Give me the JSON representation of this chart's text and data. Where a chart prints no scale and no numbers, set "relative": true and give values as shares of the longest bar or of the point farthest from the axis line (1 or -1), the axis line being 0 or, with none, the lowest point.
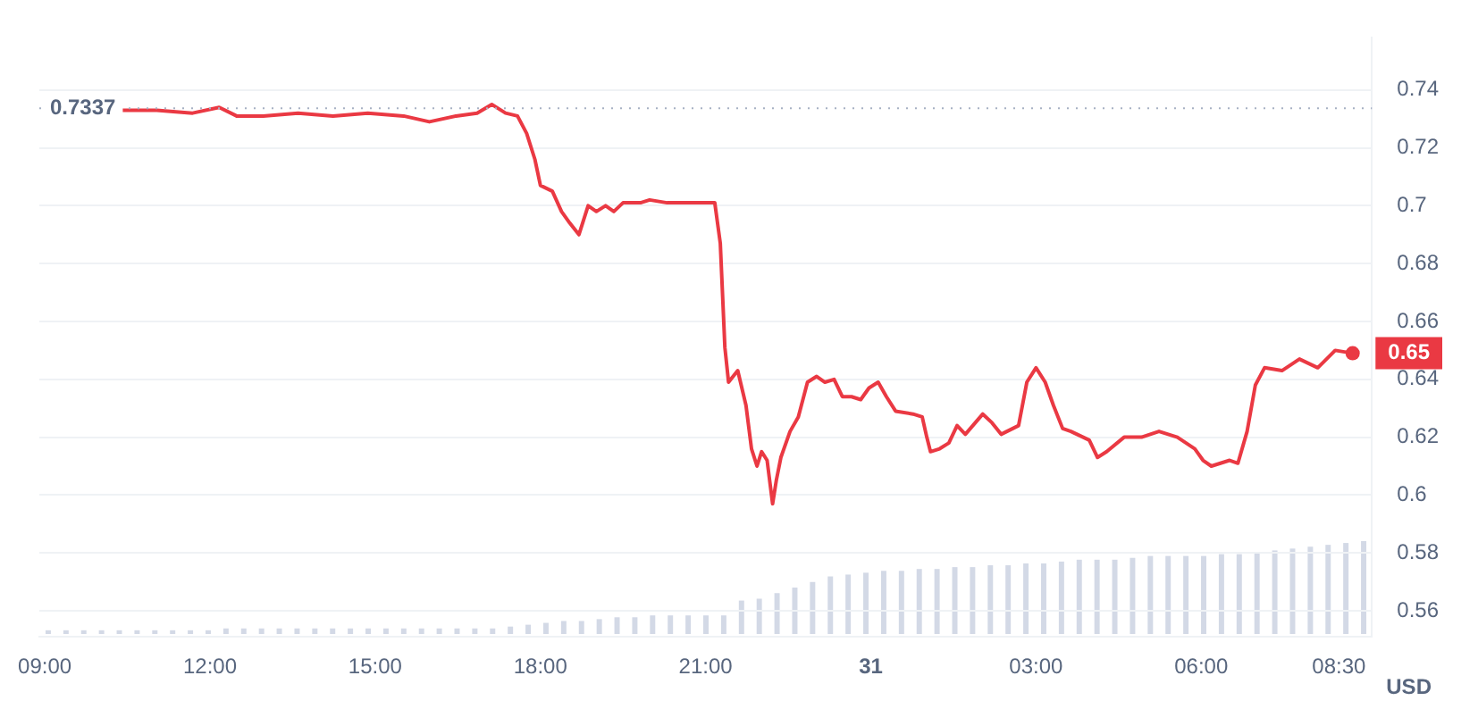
{
  "chart_data": [
    {
      "type": "line",
      "ylabel": "USD",
      "grid": "y",
      "legend": false,
      "marker": "none",
      "line_style": "solid",
      "tick_labels": true,
      "xlim": [
        "--01-30T08:54",
        "--01-31T09:06"
      ],
      "xticks": [
        {
          "value": "--01-30T09:00",
          "label": "09:00"
        },
        {
          "value": "--01-30T12:00",
          "label": "12:00"
        },
        {
          "value": "--01-30T15:00",
          "label": "15:00"
        },
        {
          "value": "--01-30T18:00",
          "label": "18:00"
        },
        {
          "value": "--01-30T21:00",
          "label": "21:00"
        },
        {
          "value": "--01-31T00:00",
          "label": "31"
        },
        {
          "value": "--01-31T03:00",
          "label": "03:00"
        },
        {
          "value": "--01-31T06:00",
          "label": "06:00"
        },
        {
          "value": "--01-31T08:30",
          "label": "08:30"
        }
      ],
      "ylim": [
        0.551,
        0.758
      ],
      "yticks": [
        0.56,
        0.58,
        0.6,
        0.62,
        0.64,
        0.66,
        0.68,
        0.7,
        0.72,
        0.74
      ],
      "ref_lines": [
        {
          "axis": "y",
          "value": 0.7337,
          "label": "0.7337",
          "color": "#a6b0c3",
          "line_style": "dotted"
        }
      ],
      "annotations": [
        {
          "text": "0.65",
          "x": "--01-31T08:45",
          "y": 0.649
        }
      ],
      "series": [
        {
          "color": "#ea3943",
          "x": [
            "--01-30T10:24",
            "--01-30T11:02",
            "--01-30T11:41",
            "--01-30T12:10",
            "--01-30T12:29",
            "--01-30T12:58",
            "--01-30T13:36",
            "--01-30T14:14",
            "--01-30T14:52",
            "--01-30T15:31",
            "--01-30T15:59",
            "--01-30T16:28",
            "--01-30T16:51",
            "--01-30T17:07",
            "--01-30T17:22",
            "--01-30T17:35",
            "--01-30T17:45",
            "--01-30T17:54",
            "--01-30T18:00",
            "--01-30T18:13",
            "--01-30T18:23",
            "--01-30T18:32",
            "--01-30T18:42",
            "--01-30T18:52",
            "--01-30T19:01",
            "--01-30T19:11",
            "--01-30T19:20",
            "--01-30T19:30",
            "--01-30T19:49",
            "--01-30T19:59",
            "--01-30T20:18",
            "--01-30T20:37",
            "--01-30T21:02",
            "--01-30T21:10",
            "--01-30T21:16",
            "--01-30T21:21",
            "--01-30T21:25",
            "--01-30T21:35",
            "--01-30T21:44",
            "--01-30T21:50",
            "--01-30T21:56",
            "--01-30T22:01",
            "--01-30T22:07",
            "--01-30T22:13",
            "--01-30T22:17",
            "--01-30T22:22",
            "--01-30T22:32",
            "--01-30T22:41",
            "--01-30T22:51",
            "--01-30T23:01",
            "--01-30T23:10",
            "--01-30T23:20",
            "--01-30T23:29",
            "--01-30T23:39",
            "--01-30T23:49",
            "--01-30T23:58",
            "--01-31T00:08",
            "--01-31T00:17",
            "--01-31T00:27",
            "--01-31T00:46",
            "--01-31T00:56",
            "--01-31T01:01",
            "--01-31T01:05",
            "--01-31T01:15",
            "--01-31T01:25",
            "--01-31T01:34",
            "--01-31T01:43",
            "--01-31T02:02",
            "--01-31T02:12",
            "--01-31T02:22",
            "--01-31T02:41",
            "--01-31T02:50",
            "--01-31T03:00",
            "--01-31T03:10",
            "--01-31T03:19",
            "--01-31T03:29",
            "--01-31T03:38",
            "--01-31T03:58",
            "--01-31T04:07",
            "--01-31T04:17",
            "--01-31T04:36",
            "--01-31T04:55",
            "--01-31T05:14",
            "--01-31T05:34",
            "--01-31T05:53",
            "--01-31T06:02",
            "--01-31T06:11",
            "--01-31T06:31",
            "--01-31T06:40",
            "--01-31T06:50",
            "--01-31T06:59",
            "--01-31T07:09",
            "--01-31T07:28",
            "--01-31T07:47",
            "--01-31T08:07",
            "--01-31T08:26",
            "--01-31T08:45"
          ],
          "values": [
            0.733,
            0.733,
            0.732,
            0.734,
            0.731,
            0.731,
            0.732,
            0.731,
            0.732,
            0.731,
            0.729,
            0.731,
            0.732,
            0.735,
            0.732,
            0.731,
            0.725,
            0.716,
            0.707,
            0.705,
            0.698,
            0.694,
            0.69,
            0.7,
            0.698,
            0.7,
            0.698,
            0.701,
            0.701,
            0.702,
            0.701,
            0.701,
            0.701,
            0.701,
            0.687,
            0.651,
            0.639,
            0.643,
            0.631,
            0.616,
            0.61,
            0.615,
            0.612,
            0.597,
            0.605,
            0.613,
            0.622,
            0.627,
            0.639,
            0.641,
            0.639,
            0.64,
            0.634,
            0.634,
            0.633,
            0.637,
            0.639,
            0.634,
            0.629,
            0.628,
            0.627,
            0.62,
            0.615,
            0.616,
            0.618,
            0.624,
            0.621,
            0.628,
            0.625,
            0.621,
            0.624,
            0.639,
            0.644,
            0.639,
            0.631,
            0.623,
            0.622,
            0.619,
            0.613,
            0.615,
            0.62,
            0.62,
            0.622,
            0.62,
            0.616,
            0.612,
            0.61,
            0.612,
            0.611,
            0.622,
            0.638,
            0.644,
            0.643,
            0.647,
            0.644,
            0.65,
            0.649
          ]
        }
      ]
    },
    {
      "type": "bar",
      "relative": true,
      "tick_labels": false,
      "legend": false,
      "color": "#d3d9e6",
      "categories": [
        null,
        null,
        null,
        null,
        null,
        null,
        null,
        null,
        null,
        null,
        null,
        null,
        null,
        null,
        null,
        null,
        null,
        null,
        null,
        null,
        null,
        null,
        null,
        null,
        null,
        null,
        null,
        null,
        null,
        null,
        null,
        null,
        null,
        null,
        null,
        null,
        null,
        null,
        null,
        null,
        null,
        null,
        null,
        null,
        null,
        null,
        null,
        null,
        null,
        null,
        null,
        null,
        null,
        null,
        null,
        null,
        null,
        null,
        null,
        null,
        null,
        null,
        null,
        null,
        null,
        null,
        null,
        null,
        null,
        null,
        null,
        null,
        null,
        null,
        null
      ],
      "values": [
        0.04,
        0.04,
        0.04,
        0.04,
        0.04,
        0.04,
        0.04,
        0.04,
        0.04,
        0.04,
        0.06,
        0.06,
        0.06,
        0.06,
        0.06,
        0.06,
        0.06,
        0.06,
        0.06,
        0.06,
        0.06,
        0.06,
        0.06,
        0.06,
        0.06,
        0.06,
        0.08,
        0.1,
        0.12,
        0.14,
        0.14,
        0.16,
        0.18,
        0.18,
        0.2,
        0.2,
        0.2,
        0.2,
        0.2,
        0.36,
        0.38,
        0.44,
        0.5,
        0.56,
        0.62,
        0.64,
        0.66,
        0.68,
        0.68,
        0.7,
        0.7,
        0.72,
        0.72,
        0.74,
        0.74,
        0.76,
        0.76,
        0.78,
        0.8,
        0.8,
        0.8,
        0.82,
        0.84,
        0.84,
        0.84,
        0.84,
        0.86,
        0.86,
        0.88,
        0.9,
        0.92,
        0.94,
        0.96,
        0.98,
        1
      ]
    }
  ]
}
